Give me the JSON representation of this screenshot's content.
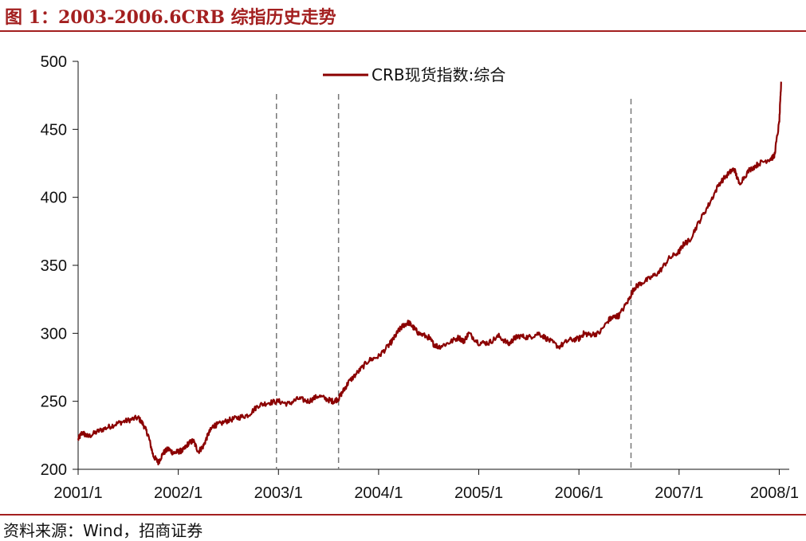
{
  "figure": {
    "title": "图 1：2003-2006.6CRB 综指历史走势",
    "source": "资料来源：Wind，招商证券",
    "accent_color": "#a31f1f"
  },
  "chart_data": {
    "type": "line",
    "xlabel": "",
    "ylabel": "",
    "ylim": [
      200,
      500
    ],
    "y_ticks": [
      200,
      250,
      300,
      350,
      400,
      450,
      500
    ],
    "x_ticks": [
      "2001/1",
      "2002/1",
      "2003/1",
      "2004/1",
      "2005/1",
      "2006/1",
      "2007/1",
      "2008/1"
    ],
    "x_tick_values": [
      2001,
      2002,
      2003,
      2004,
      2005,
      2006,
      2007,
      2008
    ],
    "xlim": [
      2001,
      2008.1
    ],
    "grid": false,
    "legend_position": "top-center",
    "reference_lines_x": [
      2002.98,
      2003.6,
      2006.52
    ],
    "series": [
      {
        "name": "CRB现货指数:综合",
        "color": "#8b0000",
        "x": [
          2001.0,
          2001.04,
          2001.1,
          2001.2,
          2001.3,
          2001.4,
          2001.5,
          2001.6,
          2001.65,
          2001.7,
          2001.75,
          2001.8,
          2001.85,
          2001.9,
          2001.95,
          2002.0,
          2002.05,
          2002.1,
          2002.15,
          2002.2,
          2002.25,
          2002.3,
          2002.35,
          2002.4,
          2002.5,
          2002.6,
          2002.7,
          2002.8,
          2002.9,
          2003.0,
          2003.1,
          2003.2,
          2003.3,
          2003.4,
          2003.5,
          2003.55,
          2003.6,
          2003.65,
          2003.7,
          2003.8,
          2003.9,
          2004.0,
          2004.1,
          2004.15,
          2004.2,
          2004.25,
          2004.3,
          2004.35,
          2004.4,
          2004.5,
          2004.55,
          2004.6,
          2004.7,
          2004.8,
          2004.85,
          2004.9,
          2005.0,
          2005.1,
          2005.2,
          2005.3,
          2005.35,
          2005.4,
          2005.5,
          2005.6,
          2005.7,
          2005.8,
          2005.9,
          2006.0,
          2006.05,
          2006.1,
          2006.2,
          2006.3,
          2006.35,
          2006.4,
          2006.5,
          2006.55,
          2006.6,
          2006.7,
          2006.8,
          2006.9,
          2007.0,
          2007.05,
          2007.1,
          2007.2,
          2007.3,
          2007.4,
          2007.5,
          2007.55,
          2007.6,
          2007.7,
          2007.8,
          2007.9,
          2007.95,
          2008.0,
          2008.02
        ],
        "values": [
          222,
          227,
          224,
          228,
          231,
          234,
          236,
          238,
          233,
          225,
          210,
          205,
          212,
          215,
          212,
          213,
          214,
          219,
          221,
          213,
          217,
          226,
          232,
          233,
          236,
          238,
          240,
          247,
          249,
          250,
          248,
          252,
          250,
          254,
          251,
          250,
          252,
          258,
          264,
          272,
          280,
          283,
          291,
          296,
          302,
          306,
          308,
          304,
          300,
          297,
          292,
          290,
          293,
          297,
          294,
          300,
          293,
          293,
          298,
          292,
          296,
          298,
          297,
          300,
          295,
          290,
          295,
          296,
          300,
          299,
          300,
          310,
          312,
          313,
          325,
          333,
          336,
          340,
          345,
          355,
          360,
          366,
          368,
          382,
          395,
          410,
          418,
          421,
          410,
          420,
          425,
          428,
          430,
          455,
          485
        ]
      }
    ]
  }
}
